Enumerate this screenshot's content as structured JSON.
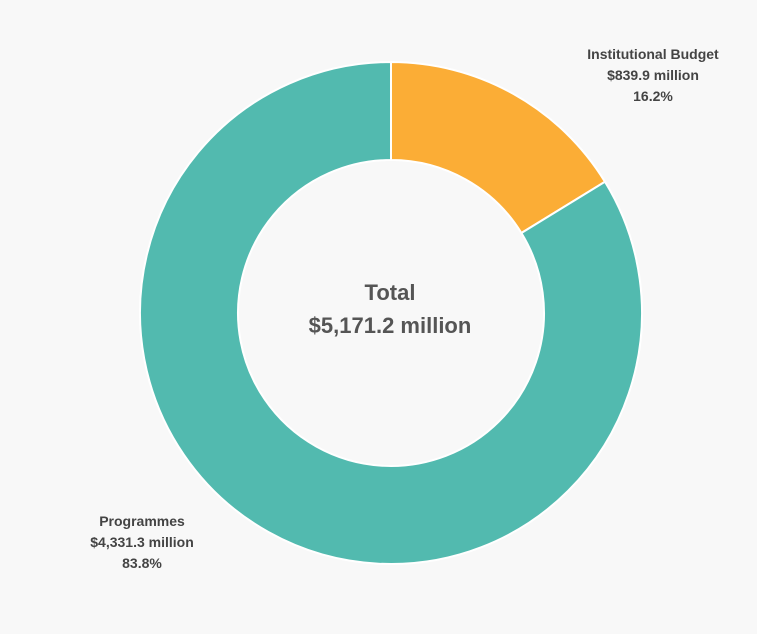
{
  "chart_data": {
    "type": "pie",
    "donut": true,
    "center_label": {
      "line1": "Total",
      "line2": "$5,171.2 million"
    },
    "slices": [
      {
        "label": "Institutional Budget",
        "value_text": "$839.9 million",
        "percent_text": "16.2%",
        "value": 839.9,
        "percent": 16.2,
        "color": "#FBAD36"
      },
      {
        "label": "Programmes",
        "value_text": "$4,331.3 million",
        "percent_text": "83.8%",
        "value": 4331.3,
        "percent": 83.8,
        "color": "#52BAAF"
      }
    ],
    "total": 5171.2,
    "background_color": "#F8F8F8"
  }
}
